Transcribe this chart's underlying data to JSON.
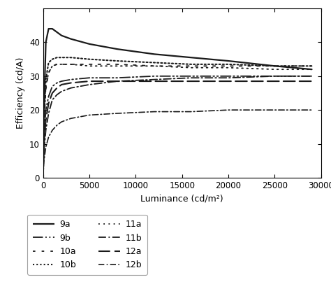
{
  "title": "",
  "xlabel": "Luminance (cd/m²)",
  "ylabel": "Efficiency (cd/A)",
  "xlim": [
    0,
    30000
  ],
  "ylim": [
    0,
    50
  ],
  "yticks": [
    0,
    10,
    20,
    30,
    40
  ],
  "xticks": [
    0,
    5000,
    10000,
    15000,
    20000,
    25000,
    30000
  ],
  "series": {
    "9a": {
      "x": [
        0,
        100,
        300,
        600,
        1000,
        1500,
        2000,
        3000,
        5000,
        8000,
        12000,
        16000,
        20000,
        25000,
        29000
      ],
      "y": [
        0,
        20,
        40,
        44,
        44,
        43,
        42,
        41,
        39.5,
        38,
        36.5,
        35.5,
        34.5,
        33,
        32
      ]
    },
    "9b": {
      "x": [
        0,
        100,
        300,
        600,
        1000,
        1500,
        2000,
        3000,
        5000,
        8000,
        12000,
        16000,
        20000,
        25000,
        29000
      ],
      "y": [
        0,
        12,
        20,
        24,
        27,
        28,
        28.5,
        29,
        29.5,
        29.5,
        30,
        30,
        30,
        30,
        30
      ]
    },
    "10a": {
      "x": [
        0,
        100,
        300,
        600,
        1000,
        1500,
        2000,
        3000,
        5000,
        8000,
        12000,
        16000,
        20000,
        25000,
        29000
      ],
      "y": [
        0,
        16,
        26,
        31,
        33,
        33.5,
        33.5,
        33.5,
        33.5,
        33.5,
        33,
        33,
        33,
        33,
        33
      ]
    },
    "10b": {
      "x": [
        0,
        100,
        300,
        600,
        1000,
        1500,
        2000,
        3000,
        5000,
        8000,
        12000,
        16000,
        20000,
        25000,
        29000
      ],
      "y": [
        0,
        18,
        29,
        34,
        35,
        35.5,
        35.5,
        35.5,
        35,
        34.5,
        34,
        33.5,
        33.5,
        33,
        33
      ]
    },
    "11a": {
      "x": [
        0,
        100,
        300,
        600,
        1000,
        1500,
        2000,
        3000,
        5000,
        8000,
        12000,
        16000,
        20000,
        25000,
        29000
      ],
      "y": [
        0,
        16,
        27,
        31,
        33,
        33.5,
        33.5,
        33.5,
        33,
        33,
        33,
        32.5,
        32.5,
        32,
        32
      ]
    },
    "11b": {
      "x": [
        0,
        100,
        300,
        600,
        1000,
        1500,
        2000,
        3000,
        5000,
        8000,
        12000,
        16000,
        20000,
        25000,
        29000
      ],
      "y": [
        0,
        8,
        14,
        19,
        23,
        24.5,
        25.5,
        26.5,
        27.5,
        28.5,
        29,
        29.5,
        29.5,
        30,
        30
      ]
    },
    "12a": {
      "x": [
        0,
        100,
        300,
        600,
        1000,
        1500,
        2000,
        3000,
        5000,
        8000,
        12000,
        16000,
        20000,
        25000,
        29000
      ],
      "y": [
        0,
        10,
        17,
        22,
        25,
        26.5,
        27.5,
        28,
        28.5,
        28.5,
        28.5,
        28.5,
        28.5,
        28.5,
        28.5
      ]
    },
    "12b": {
      "x": [
        0,
        100,
        300,
        600,
        1000,
        1500,
        2000,
        3000,
        5000,
        8000,
        12000,
        16000,
        20000,
        25000,
        29000
      ],
      "y": [
        0,
        5,
        9,
        12,
        14,
        15.5,
        16.5,
        17.5,
        18.5,
        19,
        19.5,
        19.5,
        20,
        20,
        20
      ]
    }
  },
  "legend_entries": [
    "9a",
    "9b",
    "10a",
    "10b",
    "11a",
    "11b",
    "12a",
    "12b"
  ],
  "background_color": "#ffffff"
}
